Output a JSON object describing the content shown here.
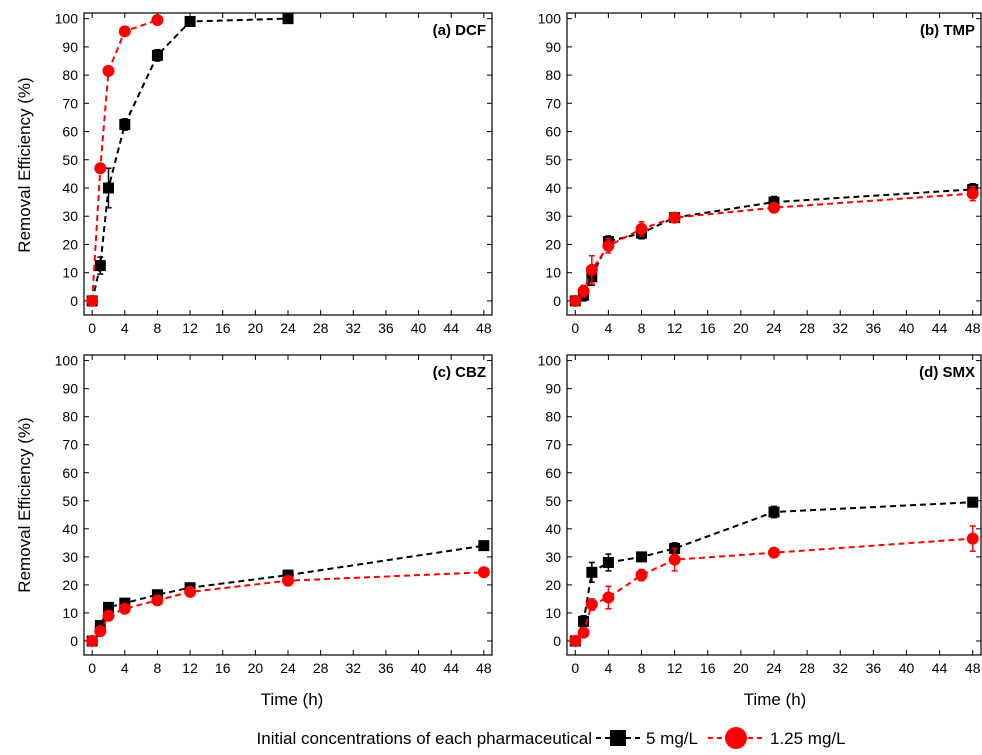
{
  "figure": {
    "xlabel": "Time (h)",
    "ylabel": "Removal Efficiency (%)",
    "legend_prefix": "Initial concentrations of each pharmaceutical",
    "series_styles": [
      {
        "name": "5 mg/L",
        "color": "#000000",
        "marker": "square",
        "line": "dashed"
      },
      {
        "name": "1.25 mg/L",
        "color": "#ff0000",
        "marker": "circle",
        "line": "dashed"
      }
    ]
  },
  "chart_data": [
    {
      "type": "line",
      "title": "(a) DCF",
      "xlabel": "Time (h)",
      "ylabel": "Removal Efficiency (%)",
      "xlim": [
        -1,
        49
      ],
      "ylim": [
        -5,
        102
      ],
      "xticks": [
        0,
        4,
        8,
        12,
        16,
        20,
        24,
        28,
        32,
        36,
        40,
        44,
        48
      ],
      "yticks": [
        0,
        10,
        20,
        30,
        40,
        50,
        60,
        70,
        80,
        90,
        100
      ],
      "series": [
        {
          "name": "5 mg/L",
          "x": [
            0,
            1,
            2,
            4,
            8,
            12,
            24
          ],
          "y": [
            0,
            12.5,
            40,
            62.5,
            87,
            99,
            100
          ],
          "err": [
            0,
            3,
            7,
            2,
            2,
            1,
            1
          ]
        },
        {
          "name": "1.25 mg/L",
          "x": [
            0,
            1,
            2,
            4,
            8
          ],
          "y": [
            0,
            47,
            81.5,
            95.5,
            99.5
          ],
          "err": [
            0,
            1.5,
            1.5,
            1,
            0.5
          ]
        }
      ]
    },
    {
      "type": "line",
      "title": "(b) TMP",
      "xlabel": "Time (h)",
      "ylabel": "",
      "xlim": [
        -1,
        49
      ],
      "ylim": [
        -5,
        102
      ],
      "xticks": [
        0,
        4,
        8,
        12,
        16,
        20,
        24,
        28,
        32,
        36,
        40,
        44,
        48
      ],
      "yticks": [
        0,
        10,
        20,
        30,
        40,
        50,
        60,
        70,
        80,
        90,
        100
      ],
      "series": [
        {
          "name": "5 mg/L",
          "x": [
            0,
            1,
            2,
            4,
            8,
            12,
            24,
            48
          ],
          "y": [
            0,
            2,
            8.5,
            21,
            24,
            29.5,
            35,
            39.5
          ],
          "err": [
            0,
            2,
            3,
            2,
            2,
            1.5,
            2,
            2
          ]
        },
        {
          "name": "1.25 mg/L",
          "x": [
            0,
            1,
            2,
            4,
            8,
            12,
            24,
            48
          ],
          "y": [
            0,
            3.5,
            11,
            19.5,
            25.5,
            29.5,
            33,
            38
          ],
          "err": [
            0,
            2,
            5,
            2.5,
            2.5,
            1.5,
            1.5,
            2.5
          ]
        }
      ]
    },
    {
      "type": "line",
      "title": "(c) CBZ",
      "xlabel": "Time (h)",
      "ylabel": "Removal Efficiency (%)",
      "xlim": [
        -1,
        49
      ],
      "ylim": [
        -5,
        102
      ],
      "xticks": [
        0,
        4,
        8,
        12,
        16,
        20,
        24,
        28,
        32,
        36,
        40,
        44,
        48
      ],
      "yticks": [
        0,
        10,
        20,
        30,
        40,
        50,
        60,
        70,
        80,
        90,
        100
      ],
      "series": [
        {
          "name": "5 mg/L",
          "x": [
            0,
            1,
            2,
            4,
            8,
            12,
            24,
            48
          ],
          "y": [
            0,
            5.5,
            12,
            13.5,
            16.5,
            19,
            23.5,
            34
          ],
          "err": [
            0,
            1,
            1,
            1,
            1,
            1,
            1,
            1
          ]
        },
        {
          "name": "1.25 mg/L",
          "x": [
            0,
            1,
            2,
            4,
            8,
            12,
            24,
            48
          ],
          "y": [
            0,
            3.5,
            9,
            11.5,
            14.5,
            17.5,
            21.5,
            24.5
          ],
          "err": [
            0,
            1,
            1,
            1,
            1,
            1,
            1,
            1
          ]
        }
      ]
    },
    {
      "type": "line",
      "title": "(d) SMX",
      "xlabel": "Time (h)",
      "ylabel": "",
      "xlim": [
        -1,
        49
      ],
      "ylim": [
        -5,
        102
      ],
      "xticks": [
        0,
        4,
        8,
        12,
        16,
        20,
        24,
        28,
        32,
        36,
        40,
        44,
        48
      ],
      "yticks": [
        0,
        10,
        20,
        30,
        40,
        50,
        60,
        70,
        80,
        90,
        100
      ],
      "series": [
        {
          "name": "5 mg/L",
          "x": [
            0,
            1,
            2,
            4,
            8,
            12,
            24,
            48
          ],
          "y": [
            0,
            7,
            24.5,
            28,
            30,
            33,
            46,
            49.5
          ],
          "err": [
            0,
            2,
            3.5,
            3,
            1.5,
            2,
            2,
            1.5
          ]
        },
        {
          "name": "1.25 mg/L",
          "x": [
            0,
            1,
            2,
            4,
            8,
            12,
            24,
            48
          ],
          "y": [
            0,
            3,
            13,
            15.5,
            23.5,
            29,
            31.5,
            36.5
          ],
          "err": [
            0,
            1.5,
            2,
            4,
            2,
            4,
            1.5,
            4.5
          ]
        }
      ]
    }
  ]
}
